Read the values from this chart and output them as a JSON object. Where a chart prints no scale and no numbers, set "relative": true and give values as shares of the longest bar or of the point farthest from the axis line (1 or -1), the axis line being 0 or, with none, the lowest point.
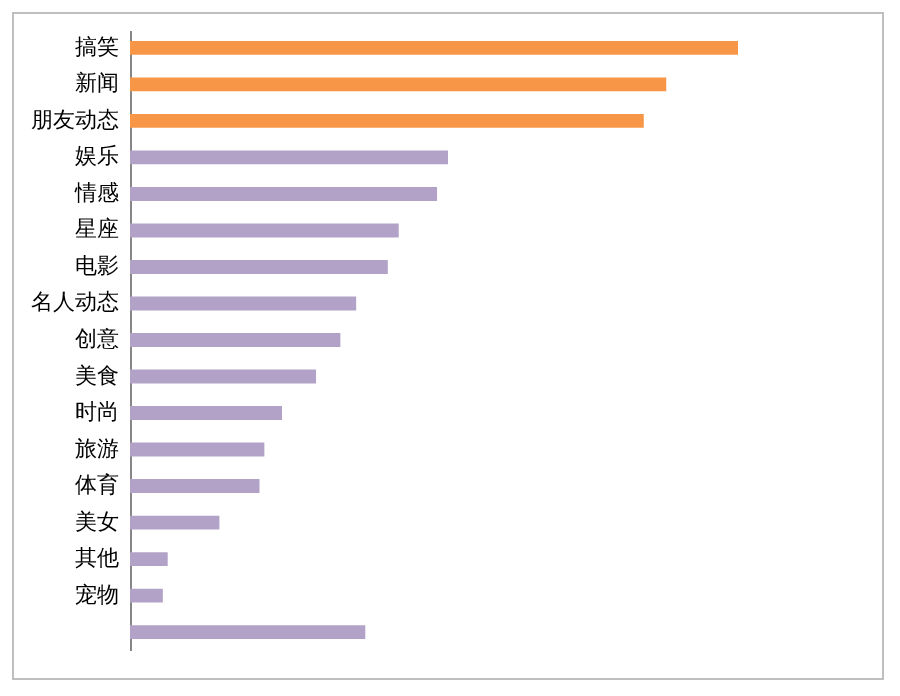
{
  "chart_data": {
    "type": "bar",
    "orientation": "horizontal",
    "relative": true,
    "categories": [
      "搞笑",
      "新闻",
      "朋友动态",
      "娱乐",
      "情感",
      "星座",
      "电影",
      "名人动态",
      "创意",
      "美食",
      "时尚",
      "旅游",
      "体育",
      "美女",
      "其他",
      "宠物",
      null
    ],
    "values": [
      1,
      0.882,
      0.845,
      0.523,
      0.505,
      0.442,
      0.424,
      0.372,
      0.346,
      0.306,
      0.25,
      0.221,
      0.213,
      0.147,
      0.062,
      0.054,
      0.387
    ],
    "colors": [
      "#f79646",
      "#f79646",
      "#f79646",
      "#b2a2c7",
      "#b2a2c7",
      "#b2a2c7",
      "#b2a2c7",
      "#b2a2c7",
      "#b2a2c7",
      "#b2a2c7",
      "#b2a2c7",
      "#b2a2c7",
      "#b2a2c7",
      "#b2a2c7",
      "#b2a2c7",
      "#b2a2c7",
      "#b2a2c7"
    ]
  }
}
